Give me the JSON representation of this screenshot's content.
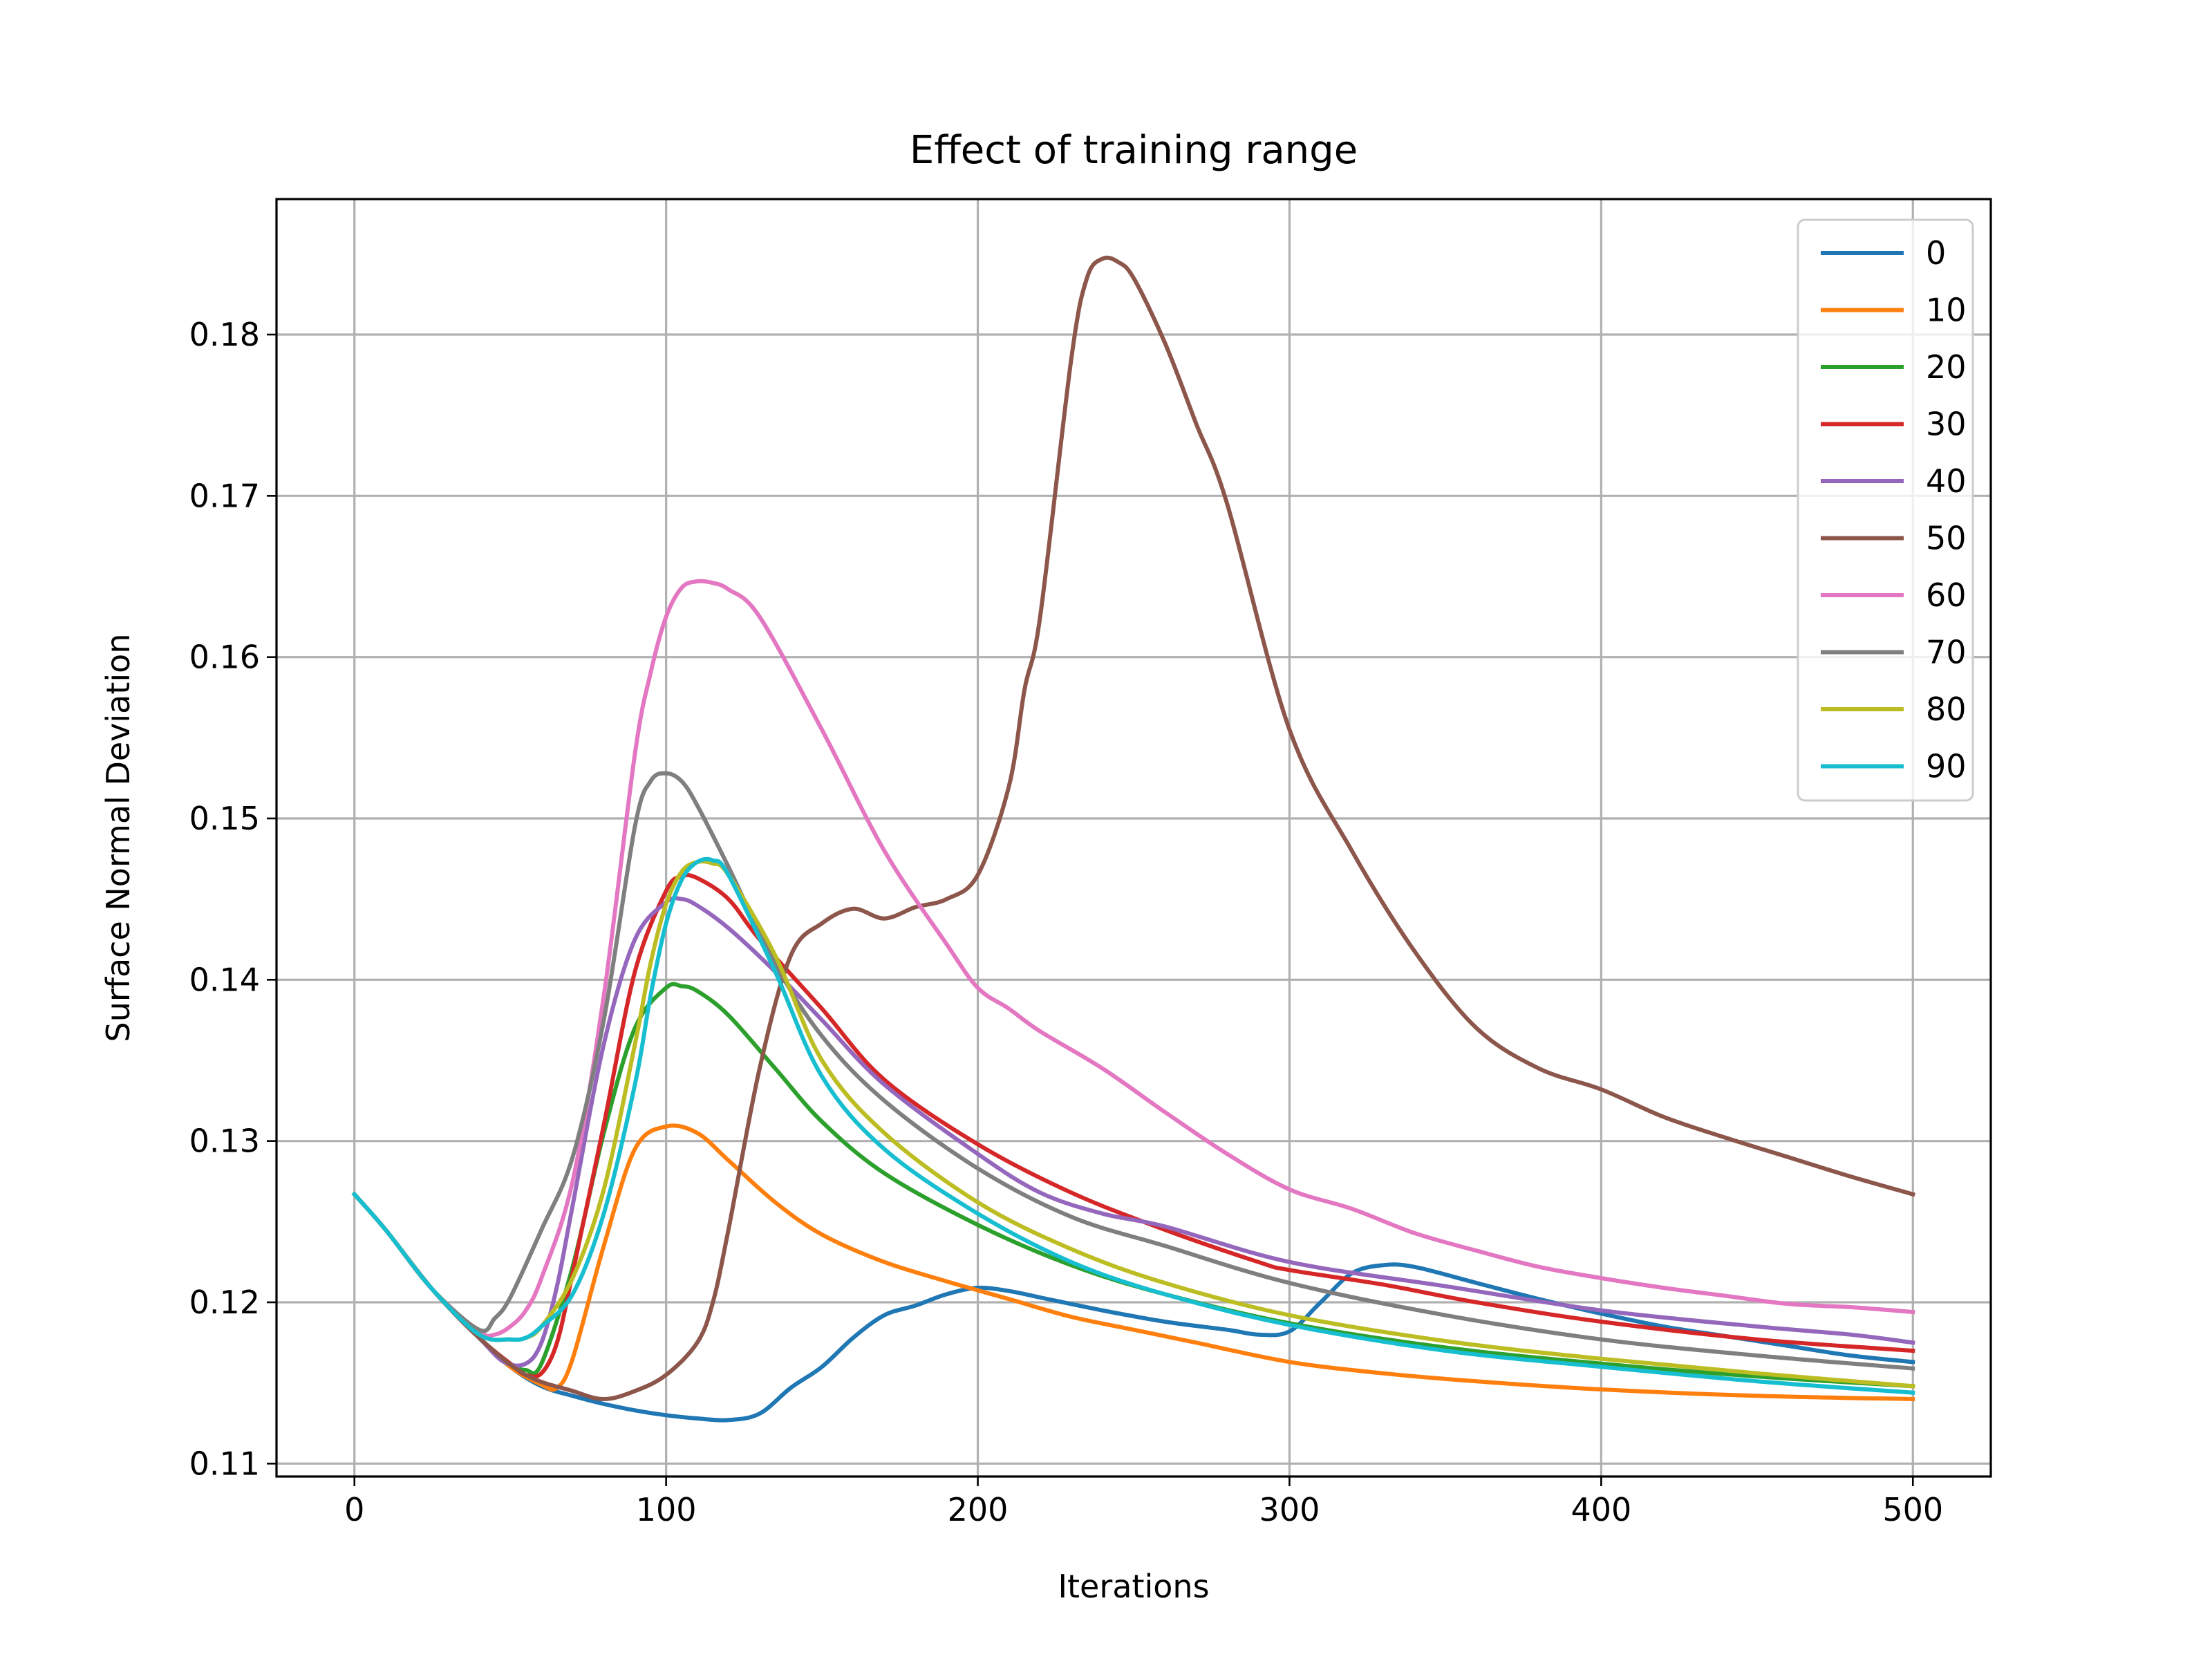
{
  "chart_data": {
    "type": "line",
    "title": "Effect of training range",
    "xlabel": "Iterations",
    "ylabel": "Surface Normal Deviation",
    "xlim": [
      -25,
      525
    ],
    "ylim": [
      0.1092,
      0.1884
    ],
    "xticks": [
      0,
      100,
      200,
      300,
      400,
      500
    ],
    "xtick_labels": [
      "0",
      "100",
      "200",
      "300",
      "400",
      "500"
    ],
    "yticks": [
      0.11,
      0.12,
      0.13,
      0.14,
      0.15,
      0.16,
      0.17,
      0.18
    ],
    "ytick_labels": [
      "0.11",
      "0.12",
      "0.13",
      "0.14",
      "0.15",
      "0.16",
      "0.17",
      "0.18"
    ],
    "grid": true,
    "legend_position": "top-right",
    "series": [
      {
        "name": "0",
        "color": "#1f77b4",
        "x": [
          0,
          10,
          25,
          40,
          50,
          60,
          70,
          80,
          90,
          100,
          110,
          120,
          130,
          140,
          150,
          160,
          170,
          180,
          190,
          200,
          210,
          220,
          240,
          260,
          280,
          290,
          300,
          310,
          320,
          330,
          340,
          360,
          380,
          400,
          420,
          440,
          460,
          480,
          500
        ],
        "y": [
          0.1267,
          0.1245,
          0.1208,
          0.1178,
          0.116,
          0.1148,
          0.1142,
          0.1137,
          0.1133,
          0.113,
          0.1128,
          0.1127,
          0.1131,
          0.1147,
          0.116,
          0.1178,
          0.1192,
          0.1198,
          0.1205,
          0.1209,
          0.1207,
          0.1203,
          0.1195,
          0.1188,
          0.1183,
          0.118,
          0.1182,
          0.12,
          0.1218,
          0.1223,
          0.1222,
          0.1212,
          0.1202,
          0.1193,
          0.1185,
          0.1179,
          0.1173,
          0.1167,
          0.1163
        ]
      },
      {
        "name": "10",
        "color": "#ff7f0e",
        "x": [
          0,
          10,
          25,
          40,
          50,
          60,
          65,
          70,
          80,
          90,
          100,
          110,
          120,
          135,
          150,
          170,
          190,
          210,
          230,
          250,
          270,
          300,
          330,
          360,
          400,
          450,
          500
        ],
        "y": [
          0.1267,
          0.1245,
          0.1208,
          0.1178,
          0.116,
          0.1149,
          0.1147,
          0.1165,
          0.1235,
          0.1295,
          0.1309,
          0.1305,
          0.1288,
          0.1262,
          0.1242,
          0.1225,
          0.1213,
          0.1202,
          0.1191,
          0.1183,
          0.1175,
          0.1163,
          0.1156,
          0.1151,
          0.1146,
          0.1142,
          0.114
        ]
      },
      {
        "name": "20",
        "color": "#2ca02c",
        "x": [
          0,
          10,
          25,
          40,
          50,
          55,
          60,
          70,
          80,
          90,
          100,
          105,
          110,
          120,
          135,
          150,
          170,
          200,
          230,
          260,
          300,
          350,
          400,
          450,
          500
        ],
        "y": [
          0.1267,
          0.1245,
          0.1208,
          0.1178,
          0.1162,
          0.1158,
          0.1162,
          0.1222,
          0.1305,
          0.137,
          0.1395,
          0.1396,
          0.1393,
          0.1378,
          0.1345,
          0.1312,
          0.128,
          0.1248,
          0.1223,
          0.1205,
          0.1187,
          0.1172,
          0.1162,
          0.1154,
          0.1148
        ]
      },
      {
        "name": "30",
        "color": "#d62728",
        "x": [
          0,
          10,
          25,
          40,
          50,
          55,
          60,
          65,
          70,
          80,
          90,
          100,
          105,
          110,
          120,
          130,
          150,
          170,
          200,
          230,
          260,
          290,
          300,
          330,
          360,
          400,
          450,
          500
        ],
        "y": [
          0.1267,
          0.1245,
          0.1208,
          0.1178,
          0.1162,
          0.1155,
          0.1156,
          0.1175,
          0.1218,
          0.131,
          0.1405,
          0.1455,
          0.1464,
          0.1463,
          0.145,
          0.1425,
          0.1382,
          0.1338,
          0.1298,
          0.1268,
          0.1245,
          0.1225,
          0.122,
          0.1211,
          0.12,
          0.1188,
          0.1177,
          0.117
        ]
      },
      {
        "name": "40",
        "color": "#9467bd",
        "x": [
          0,
          10,
          25,
          40,
          48,
          55,
          60,
          65,
          70,
          80,
          90,
          100,
          105,
          110,
          120,
          135,
          150,
          170,
          200,
          220,
          240,
          260,
          300,
          350,
          400,
          450,
          480,
          500
        ],
        "y": [
          0.1267,
          0.1245,
          0.1208,
          0.1178,
          0.1163,
          0.1162,
          0.1175,
          0.121,
          0.126,
          0.136,
          0.1425,
          0.1448,
          0.145,
          0.1446,
          0.1432,
          0.1405,
          0.1375,
          0.1335,
          0.1292,
          0.1268,
          0.1255,
          0.1247,
          0.1225,
          0.121,
          0.1195,
          0.1185,
          0.118,
          0.1175
        ]
      },
      {
        "name": "50",
        "color": "#8c564b",
        "x": [
          0,
          10,
          25,
          40,
          55,
          70,
          80,
          90,
          100,
          110,
          115,
          120,
          130,
          140,
          150,
          160,
          170,
          180,
          190,
          200,
          210,
          215,
          220,
          230,
          235,
          240,
          245,
          250,
          260,
          270,
          280,
          300,
          320,
          340,
          360,
          380,
          400,
          420,
          440,
          460,
          480,
          500
        ],
        "y": [
          0.1267,
          0.1245,
          0.1208,
          0.1178,
          0.1155,
          0.1145,
          0.114,
          0.1145,
          0.1155,
          0.1175,
          0.12,
          0.1245,
          0.1345,
          0.1415,
          0.1435,
          0.1444,
          0.1438,
          0.1445,
          0.145,
          0.1465,
          0.152,
          0.158,
          0.1625,
          0.1785,
          0.1835,
          0.1847,
          0.1845,
          0.1835,
          0.1795,
          0.1745,
          0.1695,
          0.1555,
          0.148,
          0.1418,
          0.137,
          0.1345,
          0.1332,
          0.1315,
          0.1302,
          0.129,
          0.1278,
          0.1267
        ]
      },
      {
        "name": "60",
        "color": "#e377c2",
        "x": [
          0,
          10,
          25,
          40,
          45,
          50,
          55,
          60,
          70,
          80,
          90,
          95,
          100,
          105,
          110,
          115,
          120,
          130,
          150,
          170,
          190,
          200,
          210,
          220,
          240,
          260,
          280,
          300,
          320,
          340,
          360,
          380,
          400,
          420,
          440,
          460,
          480,
          500
        ],
        "y": [
          0.1267,
          0.1245,
          0.1208,
          0.1182,
          0.118,
          0.1185,
          0.1195,
          0.1215,
          0.1275,
          0.139,
          0.154,
          0.159,
          0.1625,
          0.1643,
          0.1647,
          0.1646,
          0.1642,
          0.1625,
          0.1555,
          0.148,
          0.1422,
          0.1395,
          0.1382,
          0.1368,
          0.1345,
          0.1318,
          0.1292,
          0.127,
          0.1258,
          0.1243,
          0.1232,
          0.1222,
          0.1215,
          0.1209,
          0.1204,
          0.1199,
          0.1197,
          0.1194
        ]
      },
      {
        "name": "70",
        "color": "#7f7f7f",
        "x": [
          0,
          10,
          25,
          40,
          45,
          50,
          60,
          70,
          80,
          90,
          95,
          100,
          105,
          110,
          120,
          135,
          150,
          170,
          200,
          230,
          260,
          300,
          350,
          400,
          450,
          500
        ],
        "y": [
          0.1267,
          0.1245,
          0.1208,
          0.1183,
          0.119,
          0.1203,
          0.1245,
          0.129,
          0.1375,
          0.1495,
          0.1523,
          0.1528,
          0.1523,
          0.1508,
          0.147,
          0.141,
          0.1365,
          0.1325,
          0.1283,
          0.1253,
          0.1235,
          0.1212,
          0.1192,
          0.1177,
          0.1167,
          0.1159
        ]
      },
      {
        "name": "80",
        "color": "#bcbd22",
        "x": [
          0,
          10,
          25,
          40,
          50,
          55,
          60,
          70,
          80,
          90,
          95,
          100,
          105,
          110,
          115,
          120,
          135,
          150,
          170,
          200,
          230,
          260,
          300,
          350,
          400,
          450,
          500
        ],
        "y": [
          0.1267,
          0.1245,
          0.1208,
          0.118,
          0.1177,
          0.1178,
          0.1185,
          0.1215,
          0.127,
          0.136,
          0.141,
          0.1447,
          0.1467,
          0.1473,
          0.1472,
          0.1465,
          0.1415,
          0.135,
          0.1305,
          0.1262,
          0.1233,
          0.1212,
          0.1192,
          0.1176,
          0.1165,
          0.1156,
          0.1148
        ]
      },
      {
        "name": "90",
        "color": "#17becf",
        "x": [
          0,
          10,
          25,
          40,
          50,
          55,
          60,
          70,
          80,
          90,
          95,
          100,
          105,
          110,
          115,
          120,
          135,
          150,
          170,
          200,
          230,
          260,
          300,
          350,
          400,
          450,
          500
        ],
        "y": [
          0.1267,
          0.1245,
          0.1208,
          0.118,
          0.1177,
          0.1178,
          0.1185,
          0.1205,
          0.1255,
          0.1335,
          0.139,
          0.1435,
          0.1462,
          0.1473,
          0.1474,
          0.1465,
          0.1405,
          0.134,
          0.1295,
          0.1255,
          0.1225,
          0.1205,
          0.1186,
          0.117,
          0.116,
          0.1151,
          0.1144
        ]
      }
    ]
  }
}
